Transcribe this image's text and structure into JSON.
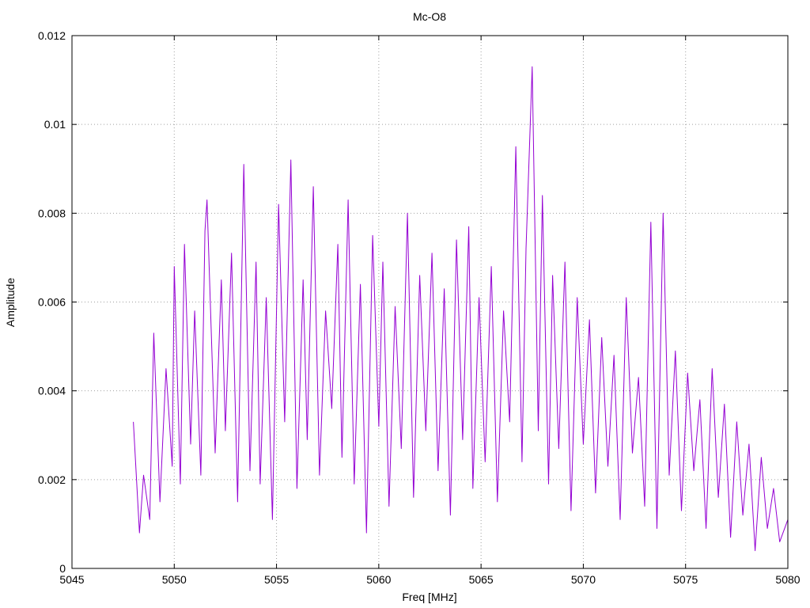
{
  "chart_data": {
    "type": "line",
    "title": "Mc-O8",
    "xlabel": "Freq [MHz]",
    "ylabel": "Amplitude",
    "xlim": [
      5045,
      5080
    ],
    "ylim": [
      0,
      0.012
    ],
    "xticks": [
      5045,
      5050,
      5055,
      5060,
      5065,
      5070,
      5075,
      5080
    ],
    "yticks": [
      0,
      0.002,
      0.004,
      0.006,
      0.008,
      0.01,
      0.012
    ],
    "xtick_labels": [
      "5045",
      "5050",
      "5055",
      "5060",
      "5065",
      "5070",
      "5075",
      "5080"
    ],
    "ytick_labels": [
      "0",
      "0.002",
      "0.004",
      "0.006",
      "0.008",
      "0.01",
      "0.012"
    ],
    "grid": true,
    "legend": "none",
    "series": [
      {
        "color": "#9400d3",
        "x": [
          5048.0,
          5048.3,
          5048.5,
          5048.8,
          5049.0,
          5049.3,
          5049.6,
          5049.9,
          5050.0,
          5050.3,
          5050.5,
          5050.8,
          5051.0,
          5051.3,
          5051.5,
          5051.6,
          5052.0,
          5052.3,
          5052.5,
          5052.8,
          5053.1,
          5053.4,
          5053.7,
          5054.0,
          5054.2,
          5054.5,
          5054.8,
          5055.1,
          5055.4,
          5055.7,
          5056.0,
          5056.3,
          5056.5,
          5056.8,
          5057.1,
          5057.4,
          5057.7,
          5058.0,
          5058.2,
          5058.5,
          5058.8,
          5059.1,
          5059.4,
          5059.7,
          5060.0,
          5060.2,
          5060.5,
          5060.8,
          5061.1,
          5061.4,
          5061.7,
          5062.0,
          5062.3,
          5062.6,
          5062.9,
          5063.2,
          5063.5,
          5063.8,
          5064.1,
          5064.4,
          5064.6,
          5064.9,
          5065.2,
          5065.5,
          5065.8,
          5066.1,
          5066.4,
          5066.7,
          5067.0,
          5067.2,
          5067.5,
          5067.8,
          5068.0,
          5068.3,
          5068.5,
          5068.8,
          5069.1,
          5069.4,
          5069.7,
          5070.0,
          5070.3,
          5070.6,
          5070.9,
          5071.2,
          5071.5,
          5071.8,
          5072.1,
          5072.4,
          5072.7,
          5073.0,
          5073.3,
          5073.6,
          5073.9,
          5074.2,
          5074.5,
          5074.8,
          5075.1,
          5075.4,
          5075.7,
          5076.0,
          5076.3,
          5076.6,
          5076.9,
          5077.2,
          5077.5,
          5077.8,
          5078.1,
          5078.4,
          5078.7,
          5079.0,
          5079.3,
          5079.6,
          5080.0
        ],
        "y": [
          0.0033,
          0.0008,
          0.0021,
          0.0011,
          0.0053,
          0.0015,
          0.0045,
          0.0023,
          0.0068,
          0.0019,
          0.0073,
          0.0028,
          0.0058,
          0.0021,
          0.0076,
          0.0083,
          0.0026,
          0.0065,
          0.0031,
          0.0071,
          0.0015,
          0.0091,
          0.0022,
          0.0069,
          0.0019,
          0.0061,
          0.0011,
          0.0082,
          0.0033,
          0.0092,
          0.0018,
          0.0065,
          0.0029,
          0.0086,
          0.0021,
          0.0058,
          0.0036,
          0.0073,
          0.0025,
          0.0083,
          0.0019,
          0.0064,
          0.0008,
          0.0075,
          0.0032,
          0.0069,
          0.0014,
          0.0059,
          0.0027,
          0.008,
          0.0016,
          0.0066,
          0.0031,
          0.0071,
          0.0022,
          0.0063,
          0.0012,
          0.0074,
          0.0029,
          0.0077,
          0.0018,
          0.0061,
          0.0024,
          0.0068,
          0.0015,
          0.0058,
          0.0033,
          0.0095,
          0.0024,
          0.0072,
          0.0113,
          0.0031,
          0.0084,
          0.0019,
          0.0066,
          0.0027,
          0.0069,
          0.0013,
          0.0061,
          0.0028,
          0.0056,
          0.0017,
          0.0052,
          0.0023,
          0.0048,
          0.0011,
          0.0061,
          0.0026,
          0.0043,
          0.0014,
          0.0078,
          0.0009,
          0.008,
          0.0021,
          0.0049,
          0.0013,
          0.0044,
          0.0022,
          0.0038,
          0.0009,
          0.0045,
          0.0016,
          0.0037,
          0.0007,
          0.0033,
          0.0012,
          0.0028,
          0.0004,
          0.0025,
          0.0009,
          0.0018,
          0.0006,
          0.0011
        ]
      }
    ]
  }
}
